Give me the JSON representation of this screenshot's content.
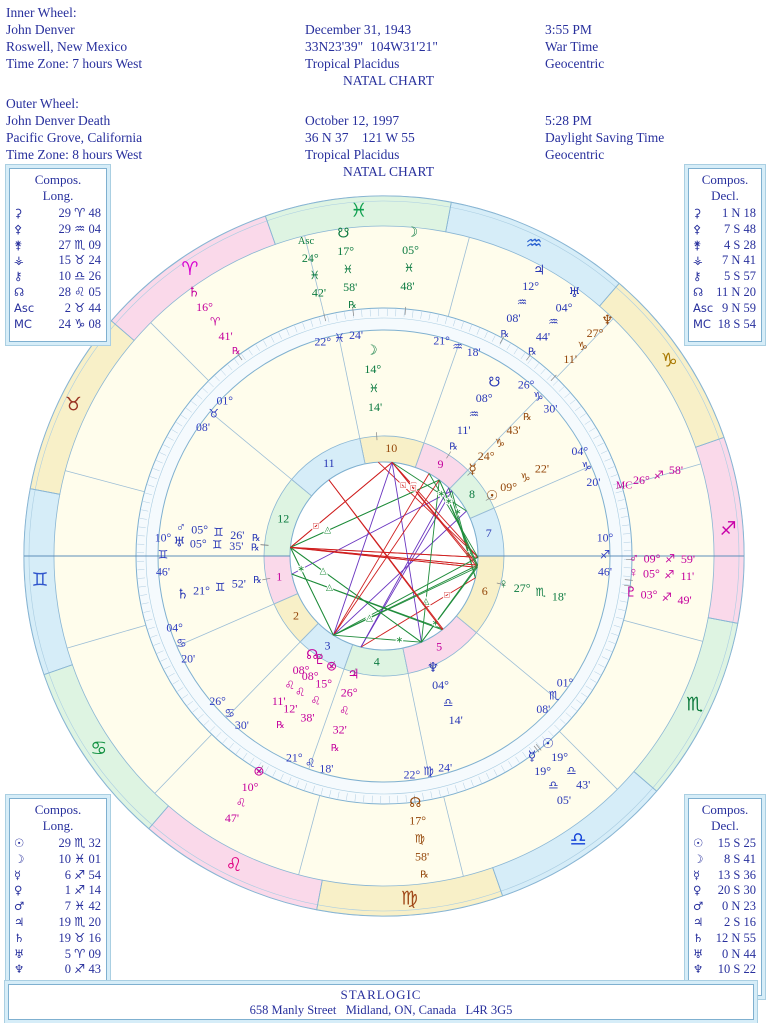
{
  "header": {
    "inner_wheel": {
      "label": "Inner Wheel:",
      "name": "John Denver",
      "place": "Roswell, New Mexico",
      "tz": "Time Zone: 7 hours West",
      "date": "December 31, 1943",
      "coords": "33N23'39\"  104W31'21\"",
      "system": "Tropical Placidus",
      "chart_type": "NATAL CHART",
      "time": "3:55 PM",
      "time_kind": "War Time",
      "centric": "Geocentric"
    },
    "outer_wheel": {
      "label": "Outer Wheel:",
      "name": "John Denver Death",
      "place": "Pacific Grove, California",
      "tz": "Time Zone: 8 hours West",
      "date": "October 12, 1997",
      "coords": "36 N 37    121 W 55",
      "system": "Tropical Placidus",
      "chart_type": "NATAL CHART",
      "time": "5:28 PM",
      "time_kind": "Daylight Saving Time",
      "centric": "Geocentric"
    }
  },
  "panels": {
    "top_left": {
      "title1": "Compos.",
      "title2": "Long.",
      "rows": [
        {
          "g": "⚳",
          "icon": "ceres-icon",
          "v": "29 ♈ 48"
        },
        {
          "g": "⚴",
          "icon": "pallas-icon",
          "v": "29 ♒ 04"
        },
        {
          "g": "⚵",
          "icon": "juno-icon",
          "v": "27 ♏ 09"
        },
        {
          "g": "⚶",
          "icon": "vesta-icon",
          "v": "15 ♉ 24"
        },
        {
          "g": "⚷",
          "icon": "chiron-icon",
          "v": "10 ♎ 26"
        },
        {
          "g": "☊",
          "icon": "north-node-icon",
          "v": "28 ♌ 05"
        },
        {
          "g": "Asc",
          "icon": "ascendant-label",
          "v": "2 ♉ 44"
        },
        {
          "g": "MC",
          "icon": "midheaven-label",
          "v": "24 ♑ 08"
        }
      ]
    },
    "top_right": {
      "title1": "Compos.",
      "title2": "Decl.",
      "rows": [
        {
          "g": "⚳",
          "icon": "ceres-icon",
          "v": "1 N 18"
        },
        {
          "g": "⚴",
          "icon": "pallas-icon",
          "v": "7 S 48"
        },
        {
          "g": "⚵",
          "icon": "juno-icon",
          "v": "4 S 28"
        },
        {
          "g": "⚶",
          "icon": "vesta-icon",
          "v": "7 N 41"
        },
        {
          "g": "⚷",
          "icon": "chiron-icon",
          "v": "5 S 57"
        },
        {
          "g": "☊",
          "icon": "north-node-icon",
          "v": "11 N 20"
        },
        {
          "g": "Asc",
          "icon": "ascendant-label",
          "v": "9 N 59"
        },
        {
          "g": "MC",
          "icon": "midheaven-label",
          "v": "18 S 54"
        }
      ]
    },
    "bottom_left": {
      "title1": "Compos.",
      "title2": "Long.",
      "rows": [
        {
          "g": "☉",
          "icon": "sun-icon",
          "v": "29 ♏ 32"
        },
        {
          "g": "☽",
          "icon": "moon-icon",
          "v": "10 ♓ 01"
        },
        {
          "g": "☿",
          "icon": "mercury-icon",
          "v": "6 ♐ 54"
        },
        {
          "g": "♀",
          "icon": "venus-icon",
          "v": "1 ♐ 14"
        },
        {
          "g": "♂",
          "icon": "mars-icon",
          "v": "7 ♓ 42"
        },
        {
          "g": "♃",
          "icon": "jupiter-icon",
          "v": "19 ♏ 20"
        },
        {
          "g": "♄",
          "icon": "saturn-icon",
          "v": "19 ♉ 16"
        },
        {
          "g": "♅",
          "icon": "uranus-icon",
          "v": "5 ♈ 09"
        },
        {
          "g": "♆",
          "icon": "neptune-icon",
          "v": "0 ♐ 43"
        },
        {
          "g": "♇",
          "icon": "pluto-icon",
          "v": "6 ♎ 00"
        }
      ]
    },
    "bottom_right": {
      "title1": "Compos.",
      "title2": "Decl.",
      "rows": [
        {
          "g": "☉",
          "icon": "sun-icon",
          "v": "15 S 25"
        },
        {
          "g": "☽",
          "icon": "moon-icon",
          "v": "8 S 41"
        },
        {
          "g": "☿",
          "icon": "mercury-icon",
          "v": "13 S 36"
        },
        {
          "g": "♀",
          "icon": "venus-icon",
          "v": "20 S 30"
        },
        {
          "g": "♂",
          "icon": "mars-icon",
          "v": "0 N 23"
        },
        {
          "g": "♃",
          "icon": "jupiter-icon",
          "v": "2 S 16"
        },
        {
          "g": "♄",
          "icon": "saturn-icon",
          "v": "12 N 55"
        },
        {
          "g": "♅",
          "icon": "uranus-icon",
          "v": "0 N 44"
        },
        {
          "g": "♆",
          "icon": "neptune-icon",
          "v": "10 S 22"
        },
        {
          "g": "♇",
          "icon": "pluto-icon",
          "v": "7 N 15"
        }
      ]
    }
  },
  "footer": {
    "line1": "STARLOGIC",
    "line2": "658 Manly Street   Midland, ON, Canada   L4R 3G5"
  },
  "chart_data": {
    "type": "astrology-biwheel",
    "asc_lon": 70.77,
    "element_colors": {
      "fire": "#c4009c",
      "earth": "#94470a",
      "air": "#2736b5",
      "water": "#0b7a40"
    },
    "element_fills": {
      "fire": "#fad9ea",
      "earth": "#f8f0c8",
      "air": "#d6edf8",
      "water": "#def4e2"
    },
    "cusp_label_color": "#2d3bc0",
    "line_color": "#7fb0d0",
    "bg_color": "#fffdec",
    "signs": [
      {
        "name": "aries",
        "glyph": "♈",
        "element": "fire",
        "color": "#d800d0"
      },
      {
        "name": "taurus",
        "glyph": "♉",
        "element": "earth",
        "color": "#993322"
      },
      {
        "name": "gemini",
        "glyph": "♊",
        "element": "air",
        "color": "#2f55cc"
      },
      {
        "name": "cancer",
        "glyph": "♋",
        "element": "water",
        "color": "#109040"
      },
      {
        "name": "leo",
        "glyph": "♌",
        "element": "fire",
        "color": "#e00080"
      },
      {
        "name": "virgo",
        "glyph": "♍",
        "element": "earth",
        "color": "#a04818"
      },
      {
        "name": "libra",
        "glyph": "♎",
        "element": "air",
        "color": "#1040d8"
      },
      {
        "name": "scorpio",
        "glyph": "♏",
        "element": "water",
        "color": "#0c7a3c"
      },
      {
        "name": "sagittarius",
        "glyph": "♐",
        "element": "fire",
        "color": "#c800a8"
      },
      {
        "name": "capricorn",
        "glyph": "♑",
        "element": "earth",
        "color": "#a87800"
      },
      {
        "name": "aquarius",
        "glyph": "♒",
        "element": "air",
        "color": "#2860d0"
      },
      {
        "name": "pisces",
        "glyph": "♓",
        "element": "water",
        "color": "#0fa050"
      }
    ],
    "natal_planets": [
      {
        "name": "sun",
        "glyph": "☉",
        "deg": "09°",
        "sign": "♑",
        "signIdx": 9,
        "min": "22'",
        "rx": false,
        "lon": 279.37,
        "asp": true,
        "phOff": 0
      },
      {
        "name": "moon",
        "glyph": "☽",
        "deg": "14°",
        "sign": "♓",
        "signIdx": 11,
        "min": "14'",
        "rx": false,
        "lon": 344.23,
        "asp": true,
        "phOff": 0
      },
      {
        "name": "mercury",
        "glyph": "☿",
        "deg": "24°",
        "sign": "♑",
        "signIdx": 9,
        "min": "43'",
        "rx": true,
        "lon": 294.72,
        "asp": true,
        "phOff": 0
      },
      {
        "name": "venus",
        "glyph": "♀",
        "deg": "27°",
        "sign": "♏",
        "signIdx": 7,
        "min": "18'",
        "rx": false,
        "lon": 237.3,
        "asp": true,
        "phOff": 0
      },
      {
        "name": "mars",
        "glyph": "♂",
        "deg": "05°",
        "sign": "♊",
        "signIdx": 2,
        "min": "26'",
        "rx": true,
        "lon": 65.43,
        "asp": true,
        "phOff": -2.4
      },
      {
        "name": "jupiter",
        "glyph": "♃",
        "deg": "26°",
        "sign": "♌",
        "signIdx": 4,
        "min": "32'",
        "rx": true,
        "lon": 146.53,
        "asp": true,
        "phOff": 0
      },
      {
        "name": "saturn",
        "glyph": "♄",
        "deg": "21°",
        "sign": "♊",
        "signIdx": 2,
        "min": "52'",
        "rx": true,
        "lon": 81.87,
        "asp": true,
        "phOff": 0
      },
      {
        "name": "uranus",
        "glyph": "♅",
        "deg": "05°",
        "sign": "♊",
        "signIdx": 2,
        "min": "35'",
        "rx": true,
        "lon": 65.58,
        "asp": true,
        "phOff": 1.7
      },
      {
        "name": "neptune",
        "glyph": "♆",
        "deg": "04°",
        "sign": "♎",
        "signIdx": 6,
        "min": "14'",
        "rx": false,
        "lon": 184.23,
        "asp": true,
        "phOff": 0
      },
      {
        "name": "pluto",
        "glyph": "♇",
        "deg": "08°",
        "sign": "♌",
        "signIdx": 4,
        "min": "12'",
        "rx": true,
        "lon": 128.2,
        "asp": true,
        "phOff": 1.2
      },
      {
        "name": "north-node",
        "glyph": "☊",
        "deg": "08°",
        "sign": "♌",
        "signIdx": 4,
        "min": "11'",
        "rx": false,
        "lon": 128.18,
        "asp": false,
        "phOff": -3.2
      },
      {
        "name": "south-node",
        "glyph": "☋",
        "deg": "08°",
        "sign": "♒",
        "signIdx": 10,
        "min": "11'",
        "rx": true,
        "lon": 308.18,
        "asp": false,
        "phOff": 0
      },
      {
        "name": "part-of-fortune",
        "glyph": "⊗",
        "deg": "15°",
        "sign": "♌",
        "signIdx": 4,
        "min": "38'",
        "rx": false,
        "lon": 135.63,
        "asp": false,
        "phOff": 0
      }
    ],
    "death_planets": [
      {
        "name": "ascendant",
        "glyph": "Asc",
        "deg": "24°",
        "sign": "♓",
        "signIdx": 11,
        "min": "42'",
        "rx": false,
        "lon": 354.7,
        "asp": false,
        "phOff": 0
      },
      {
        "name": "south-node",
        "glyph": "☋",
        "deg": "17°",
        "sign": "♓",
        "signIdx": 11,
        "min": "58'",
        "rx": true,
        "lon": 347.97,
        "asp": false,
        "phOff": 0
      },
      {
        "name": "moon",
        "glyph": "☽",
        "deg": "05°",
        "sign": "♓",
        "signIdx": 11,
        "min": "48'",
        "rx": false,
        "lon": 335.8,
        "asp": true,
        "phOff": 0
      },
      {
        "name": "jupiter",
        "glyph": "♃",
        "deg": "12°",
        "sign": "♒",
        "signIdx": 10,
        "min": "08'",
        "rx": true,
        "lon": 312.13,
        "asp": true,
        "phOff": 0
      },
      {
        "name": "uranus",
        "glyph": "♅",
        "deg": "04°",
        "sign": "♒",
        "signIdx": 10,
        "min": "44'",
        "rx": true,
        "lon": 304.73,
        "asp": true,
        "phOff": 0
      },
      {
        "name": "neptune",
        "glyph": "♆",
        "deg": "27°",
        "sign": "♑",
        "signIdx": 9,
        "min": "11'",
        "rx": false,
        "lon": 297.18,
        "asp": true,
        "phOff": 0
      },
      {
        "name": "midheaven",
        "glyph": "MC",
        "deg": "26°",
        "sign": "♐",
        "signIdx": 8,
        "min": "58'",
        "rx": false,
        "lon": 266.97,
        "asp": false,
        "phOff": 0
      },
      {
        "name": "mars",
        "glyph": "♂",
        "deg": "09°",
        "sign": "♐",
        "signIdx": 8,
        "min": "59'",
        "rx": false,
        "lon": 249.98,
        "asp": true,
        "phOff": 0
      },
      {
        "name": "venus",
        "glyph": "♀",
        "deg": "05°",
        "sign": "♐",
        "signIdx": 8,
        "min": "11'",
        "rx": false,
        "lon": 245.18,
        "asp": true,
        "phOff": 1.6
      },
      {
        "name": "pluto",
        "glyph": "♇",
        "deg": "03°",
        "sign": "♐",
        "signIdx": 8,
        "min": "49'",
        "rx": false,
        "lon": 243.82,
        "asp": true,
        "phOff": -1.6
      },
      {
        "name": "sun",
        "glyph": "☉",
        "deg": "19°",
        "sign": "♎",
        "signIdx": 6,
        "min": "43'",
        "rx": false,
        "lon": 199.72,
        "asp": true,
        "phOff": 2
      },
      {
        "name": "mercury",
        "glyph": "☿",
        "deg": "19°",
        "sign": "♎",
        "signIdx": 6,
        "min": "05'",
        "rx": false,
        "lon": 199.08,
        "asp": true,
        "phOff": -2
      },
      {
        "name": "north-node",
        "glyph": "☊",
        "deg": "17°",
        "sign": "♍",
        "signIdx": 5,
        "min": "58'",
        "rx": true,
        "lon": 167.97,
        "asp": false,
        "phOff": 0
      },
      {
        "name": "saturn",
        "glyph": "♄",
        "deg": "16°",
        "sign": "♈",
        "signIdx": 0,
        "min": "41'",
        "rx": true,
        "lon": 16.68,
        "asp": true,
        "phOff": 0
      },
      {
        "name": "part-of-fortune",
        "glyph": "⊗",
        "deg": "10°",
        "sign": "♌",
        "signIdx": 4,
        "min": "47'",
        "rx": false,
        "lon": 130.78,
        "asp": false,
        "phOff": 0
      }
    ],
    "natal_cusps": [
      {
        "num": 1,
        "deg": "10°",
        "sign": "♊",
        "min": "46'",
        "lon": 70.77
      },
      {
        "num": 2,
        "deg": "04°",
        "sign": "♋",
        "min": "20'",
        "lon": 94.33
      },
      {
        "num": 3,
        "deg": "26°",
        "sign": "♋",
        "min": "30'",
        "lon": 116.5
      },
      {
        "num": 4,
        "deg": "21°",
        "sign": "♌",
        "min": "18'",
        "lon": 141.3
      },
      {
        "num": 5,
        "deg": "22°",
        "sign": "♍",
        "min": "24'",
        "lon": 172.4
      },
      {
        "num": 6,
        "deg": "01°",
        "sign": "♏",
        "min": "08'",
        "lon": 211.13
      },
      {
        "num": 7,
        "deg": "10°",
        "sign": "♐",
        "min": "46'",
        "lon": 250.77
      },
      {
        "num": 8,
        "deg": "04°",
        "sign": "♑",
        "min": "20'",
        "lon": 274.33
      },
      {
        "num": 9,
        "deg": "26°",
        "sign": "♑",
        "min": "30'",
        "lon": 296.5
      },
      {
        "num": 10,
        "deg": "21°",
        "sign": "♒",
        "min": "18'",
        "lon": 321.3
      },
      {
        "num": 11,
        "deg": "22°",
        "sign": "♓",
        "min": "24'",
        "lon": 352.4
      },
      {
        "num": 12,
        "deg": "01°",
        "sign": "♉",
        "min": "08'",
        "lon": 31.13
      }
    ],
    "death_cusp_lons": [
      354.7,
      25.77,
      55.77,
      86.97,
      116.77,
      145.77,
      174.7,
      205.77,
      235.77,
      266.97,
      296.77,
      325.77
    ],
    "aspects": [
      {
        "angle": 60,
        "color": "#1f8c3b",
        "orb": 4,
        "marker": "∗"
      },
      {
        "angle": 90,
        "color": "#cf2020",
        "orb": 5,
        "marker": "□"
      },
      {
        "angle": 120,
        "color": "#1f8c3b",
        "orb": 5,
        "marker": "△"
      },
      {
        "angle": 150,
        "color": "#6a35c0",
        "orb": 3,
        "marker": ""
      },
      {
        "angle": 180,
        "color": "#cf2020",
        "orb": 5,
        "marker": ""
      }
    ]
  }
}
